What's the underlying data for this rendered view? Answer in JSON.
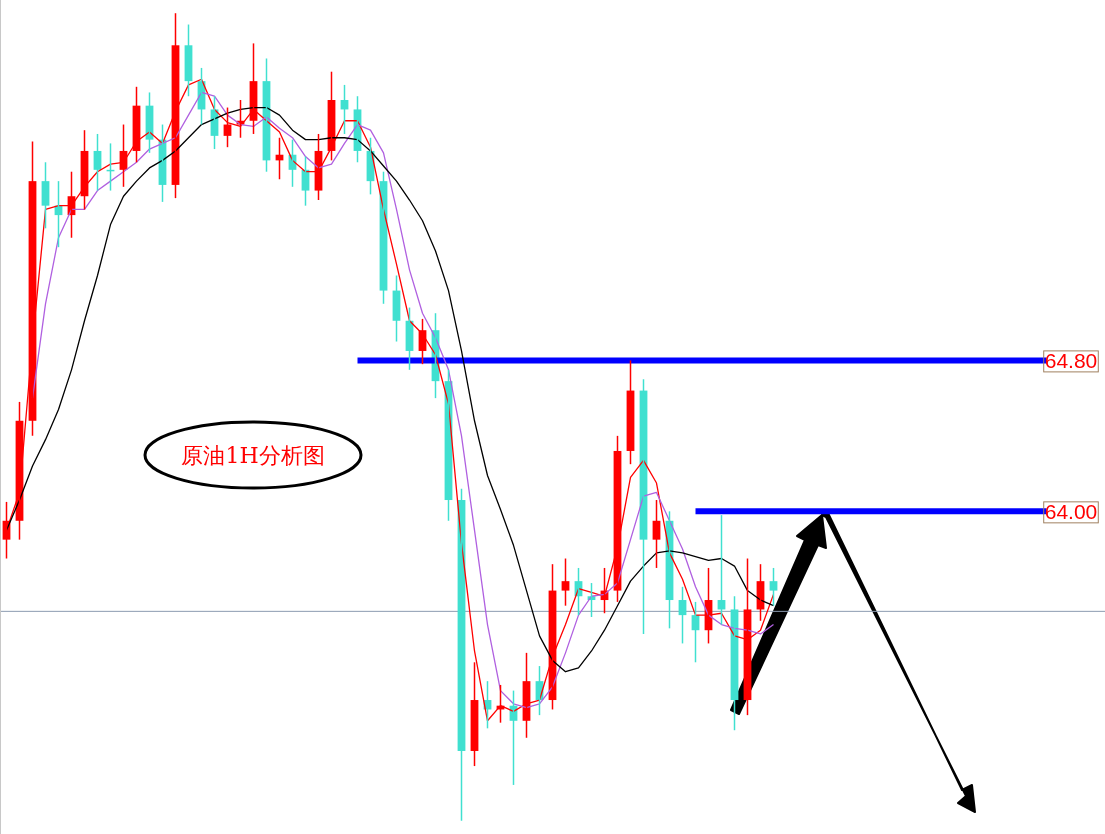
{
  "chart_data": {
    "type": "candlestick",
    "tick_labels": "y",
    "ylim": [
      62.29,
      66.71
    ],
    "yticks": [
      {
        "value": 64.8,
        "label": "64.80"
      },
      {
        "value": 64.0,
        "label": "64.00"
      }
    ],
    "categories": [
      null,
      null,
      null,
      null,
      null,
      null,
      null,
      null,
      null,
      null,
      null,
      null,
      null,
      null,
      null,
      null,
      null,
      null,
      null,
      null,
      null,
      null,
      null,
      null,
      null,
      null,
      null,
      null,
      null,
      null,
      null,
      null,
      null,
      null,
      null,
      null,
      null,
      null,
      null,
      null,
      null,
      null,
      null,
      null,
      null,
      null,
      null,
      null,
      null,
      null,
      null,
      null,
      null,
      null,
      null,
      null,
      null,
      null,
      null,
      null,
      null,
      null,
      null,
      null,
      null,
      null,
      null,
      null,
      null,
      null,
      null,
      null,
      null,
      null,
      null,
      null,
      null,
      null,
      null,
      null,
      null,
      null,
      null,
      null,
      null
    ],
    "ohlc": [
      [
        63.85,
        64.05,
        63.75,
        63.95
      ],
      [
        63.95,
        64.58,
        63.85,
        64.48
      ],
      [
        64.48,
        65.96,
        64.4,
        65.75
      ],
      [
        65.75,
        65.85,
        65.5,
        65.62
      ],
      [
        65.62,
        65.75,
        65.4,
        65.57
      ],
      [
        65.57,
        65.8,
        65.45,
        65.67
      ],
      [
        65.67,
        66.02,
        65.6,
        65.91
      ],
      [
        65.91,
        66.0,
        65.7,
        65.81
      ],
      [
        65.81,
        65.95,
        65.7,
        65.81
      ],
      [
        65.81,
        66.05,
        65.72,
        65.91
      ],
      [
        65.91,
        66.25,
        65.85,
        66.15
      ],
      [
        66.15,
        66.22,
        65.9,
        65.97
      ],
      [
        65.97,
        66.05,
        65.64,
        65.73
      ],
      [
        65.73,
        66.64,
        65.66,
        66.47
      ],
      [
        66.47,
        66.58,
        66.2,
        66.28
      ],
      [
        66.28,
        66.35,
        66.05,
        66.13
      ],
      [
        66.13,
        66.2,
        65.92,
        65.99
      ],
      [
        65.99,
        66.14,
        65.93,
        66.05
      ],
      [
        66.05,
        66.18,
        65.98,
        66.07
      ],
      [
        66.07,
        66.48,
        66.0,
        66.28
      ],
      [
        66.28,
        66.4,
        65.8,
        65.86
      ],
      [
        65.86,
        65.98,
        65.76,
        65.89
      ],
      [
        65.89,
        65.97,
        65.72,
        65.81
      ],
      [
        65.81,
        65.88,
        65.62,
        65.7
      ],
      [
        65.7,
        66.0,
        65.65,
        65.91
      ],
      [
        65.91,
        66.33,
        65.86,
        66.18
      ],
      [
        66.18,
        66.26,
        66.0,
        66.13
      ],
      [
        66.13,
        66.2,
        65.85,
        65.91
      ],
      [
        65.91,
        65.98,
        65.68,
        65.75
      ],
      [
        65.75,
        65.8,
        65.1,
        65.17
      ],
      [
        65.17,
        65.25,
        64.9,
        65.01
      ],
      [
        65.01,
        65.08,
        64.75,
        64.85
      ],
      [
        64.85,
        65.02,
        64.78,
        64.96
      ],
      [
        64.96,
        65.05,
        64.6,
        64.69
      ],
      [
        64.69,
        64.75,
        63.95,
        64.06
      ],
      [
        64.06,
        64.12,
        62.36,
        62.73
      ],
      [
        62.73,
        63.2,
        62.65,
        63.0
      ],
      [
        63.0,
        63.1,
        62.85,
        62.95
      ],
      [
        62.95,
        63.08,
        62.88,
        62.97
      ],
      [
        62.97,
        63.05,
        62.55,
        62.89
      ],
      [
        62.89,
        63.25,
        62.8,
        63.1
      ],
      [
        63.1,
        63.18,
        62.92,
        63.0
      ],
      [
        63.0,
        63.72,
        62.95,
        63.58
      ],
      [
        63.58,
        63.75,
        63.5,
        63.63
      ],
      [
        63.63,
        63.7,
        63.45,
        63.55
      ],
      [
        63.55,
        63.62,
        63.44,
        63.53
      ],
      [
        63.53,
        63.7,
        63.46,
        63.58
      ],
      [
        63.58,
        64.4,
        63.52,
        64.32
      ],
      [
        64.32,
        64.8,
        64.25,
        64.64
      ],
      [
        64.64,
        64.7,
        63.35,
        63.85
      ],
      [
        63.85,
        64.06,
        63.7,
        63.95
      ],
      [
        63.95,
        64.0,
        63.38,
        63.53
      ],
      [
        63.53,
        63.6,
        63.3,
        63.45
      ],
      [
        63.45,
        63.52,
        63.2,
        63.37
      ],
      [
        63.37,
        63.7,
        63.3,
        63.53
      ],
      [
        63.53,
        63.98,
        63.4,
        63.48
      ],
      [
        63.48,
        63.55,
        62.84,
        63.0
      ],
      [
        63.0,
        63.75,
        62.92,
        63.48
      ],
      [
        63.48,
        63.72,
        63.42,
        63.63
      ],
      [
        63.63,
        63.7,
        63.5,
        63.58
      ],
      null,
      null,
      null,
      null,
      null,
      null,
      null,
      null,
      null,
      null,
      null,
      null,
      null,
      null,
      null,
      null,
      null,
      null,
      null,
      null,
      null,
      null,
      null,
      null,
      null
    ],
    "colors": [
      "#ff0000",
      "#ff0000",
      "#ff0000",
      "#40e0d0",
      "#40e0d0",
      "#ff0000",
      "#ff0000",
      "#40e0d0",
      "#40e0d0",
      "#ff0000",
      "#ff0000",
      "#40e0d0",
      "#40e0d0",
      "#ff0000",
      "#40e0d0",
      "#40e0d0",
      "#40e0d0",
      "#ff0000",
      "#ff0000",
      "#ff0000",
      "#40e0d0",
      "#ff0000",
      "#40e0d0",
      "#40e0d0",
      "#ff0000",
      "#ff0000",
      "#40e0d0",
      "#40e0d0",
      "#40e0d0",
      "#40e0d0",
      "#40e0d0",
      "#40e0d0",
      "#ff0000",
      "#40e0d0",
      "#40e0d0",
      "#40e0d0",
      "#ff0000",
      "#40e0d0",
      "#ff0000",
      "#40e0d0",
      "#ff0000",
      "#40e0d0",
      "#ff0000",
      "#ff0000",
      "#40e0d0",
      "#40e0d0",
      "#ff0000",
      "#ff0000",
      "#ff0000",
      "#40e0d0",
      "#ff0000",
      "#40e0d0",
      "#40e0d0",
      "#40e0d0",
      "#ff0000",
      "#40e0d0",
      "#40e0d0",
      "#ff0000",
      "#ff0000",
      "#40e0d0",
      null,
      null,
      null,
      null,
      null,
      null,
      null,
      null,
      null,
      null,
      null,
      null,
      null,
      null,
      null,
      null,
      null,
      null,
      null,
      null,
      null,
      null,
      null,
      null,
      null
    ],
    "series": [
      {
        "type": "line",
        "color": "#ff0000",
        "values": [
          63.9,
          64.1,
          64.9,
          65.6,
          65.62,
          65.62,
          65.72,
          65.8,
          65.84,
          65.85,
          65.96,
          66.01,
          65.95,
          66.12,
          66.26,
          66.29,
          66.13,
          66.06,
          66.04,
          66.13,
          66.07,
          66.01,
          65.86,
          65.8,
          65.8,
          65.93,
          66.07,
          66.07,
          65.93,
          65.6,
          65.31,
          65.01,
          64.94,
          64.83,
          64.57,
          63.83,
          63.26,
          62.89,
          62.97,
          62.94,
          62.98,
          63.0,
          63.23,
          63.4,
          63.59,
          63.57,
          63.55,
          63.81,
          64.18,
          64.27,
          64.15,
          63.78,
          63.64,
          63.45,
          63.45,
          63.46,
          63.34,
          63.32,
          63.37,
          63.56,
          null,
          null,
          null,
          null,
          null,
          null,
          null,
          null,
          null,
          null,
          null,
          null,
          null,
          null,
          null,
          null,
          null,
          null,
          null,
          null,
          null,
          null,
          null,
          null,
          null
        ]
      },
      {
        "type": "line",
        "color": "#b060e0",
        "values": [
          null,
          null,
          64.6,
          65.1,
          65.45,
          65.6,
          65.6,
          65.7,
          65.75,
          65.8,
          65.85,
          65.92,
          65.95,
          65.98,
          66.1,
          66.22,
          66.2,
          66.1,
          66.05,
          66.04,
          66.09,
          66.03,
          65.98,
          65.88,
          65.82,
          65.84,
          65.95,
          66.05,
          66.02,
          65.9,
          65.6,
          65.28,
          65.05,
          64.92,
          64.75,
          64.4,
          63.9,
          63.4,
          63.05,
          62.98,
          62.96,
          62.98,
          63.07,
          63.25,
          63.45,
          63.55,
          63.56,
          63.62,
          63.85,
          64.08,
          64.1,
          63.95,
          63.8,
          63.6,
          63.45,
          63.4,
          63.38,
          63.37,
          63.35,
          63.4,
          null,
          null,
          null,
          null,
          null,
          null,
          null,
          null,
          null,
          null,
          null,
          null,
          null,
          null,
          null,
          null,
          null,
          null,
          null,
          null,
          null,
          null,
          null,
          null,
          null
        ]
      },
      {
        "type": "line",
        "color": "#000000",
        "values": [
          63.9,
          64.06,
          64.24,
          64.38,
          64.54,
          64.75,
          65.01,
          65.25,
          65.52,
          65.67,
          65.75,
          65.82,
          65.86,
          65.91,
          65.98,
          66.05,
          66.08,
          66.11,
          66.13,
          66.14,
          66.14,
          66.1,
          66.02,
          65.97,
          65.97,
          65.98,
          65.98,
          65.97,
          65.91,
          65.83,
          65.75,
          65.65,
          65.54,
          65.38,
          65.17,
          64.85,
          64.48,
          64.19,
          64.01,
          63.82,
          63.58,
          63.34,
          63.21,
          63.15,
          63.17,
          63.26,
          63.37,
          63.5,
          63.63,
          63.71,
          63.78,
          63.79,
          63.78,
          63.76,
          63.74,
          63.75,
          63.71,
          63.58,
          63.53,
          63.5,
          null,
          null,
          null,
          null,
          null,
          null,
          null,
          null,
          null,
          null,
          null,
          null,
          null,
          null,
          null,
          null,
          null,
          null,
          null,
          null,
          null,
          null,
          null,
          null,
          null
        ]
      },
      {
        "type": "line",
        "color": "#0000ff",
        "values": [
          null,
          null,
          null,
          null,
          null,
          null,
          null,
          null,
          null,
          null,
          null,
          null,
          null,
          null,
          null,
          null,
          null,
          null,
          null,
          null,
          null,
          null,
          null,
          null,
          null,
          null,
          null,
          64.8,
          64.8,
          64.8,
          64.8,
          64.8,
          64.8,
          64.8,
          64.8,
          64.8,
          64.8,
          64.8,
          64.8,
          64.8,
          64.8,
          64.8,
          64.8,
          64.8,
          64.8,
          64.8,
          64.8,
          64.8,
          64.8,
          64.8,
          64.8,
          64.8,
          64.8,
          64.8,
          64.8,
          64.8,
          64.8,
          64.8,
          64.8,
          64.8,
          64.8,
          64.8,
          64.8,
          64.8,
          64.8,
          64.8,
          64.8,
          64.8,
          64.8,
          64.8,
          64.8,
          64.8,
          64.8,
          64.8,
          64.8,
          64.8,
          64.8,
          64.8,
          64.8,
          64.8,
          64.8,
          null,
          null,
          null,
          null
        ]
      },
      {
        "type": "line",
        "color": "#0000ff",
        "values": [
          null,
          null,
          null,
          null,
          null,
          null,
          null,
          null,
          null,
          null,
          null,
          null,
          null,
          null,
          null,
          null,
          null,
          null,
          null,
          null,
          null,
          null,
          null,
          null,
          null,
          null,
          null,
          null,
          null,
          null,
          null,
          null,
          null,
          null,
          null,
          null,
          null,
          null,
          null,
          null,
          null,
          null,
          null,
          null,
          null,
          null,
          null,
          null,
          null,
          null,
          null,
          null,
          null,
          64.0,
          64.0,
          64.0,
          64.0,
          64.0,
          64.0,
          64.0,
          64.0,
          64.0,
          64.0,
          64.0,
          64.0,
          64.0,
          64.0,
          64.0,
          64.0,
          64.0,
          64.0,
          64.0,
          64.0,
          64.0,
          64.0,
          64.0,
          64.0,
          64.0,
          64.0,
          64.0,
          64.0,
          null,
          null,
          null,
          null
        ]
      }
    ],
    "ref_lines": [
      {
        "axis": "y",
        "value": 63.47,
        "color": "#8c9bb0"
      }
    ],
    "annotations": [
      "原油1H分析图"
    ]
  }
}
